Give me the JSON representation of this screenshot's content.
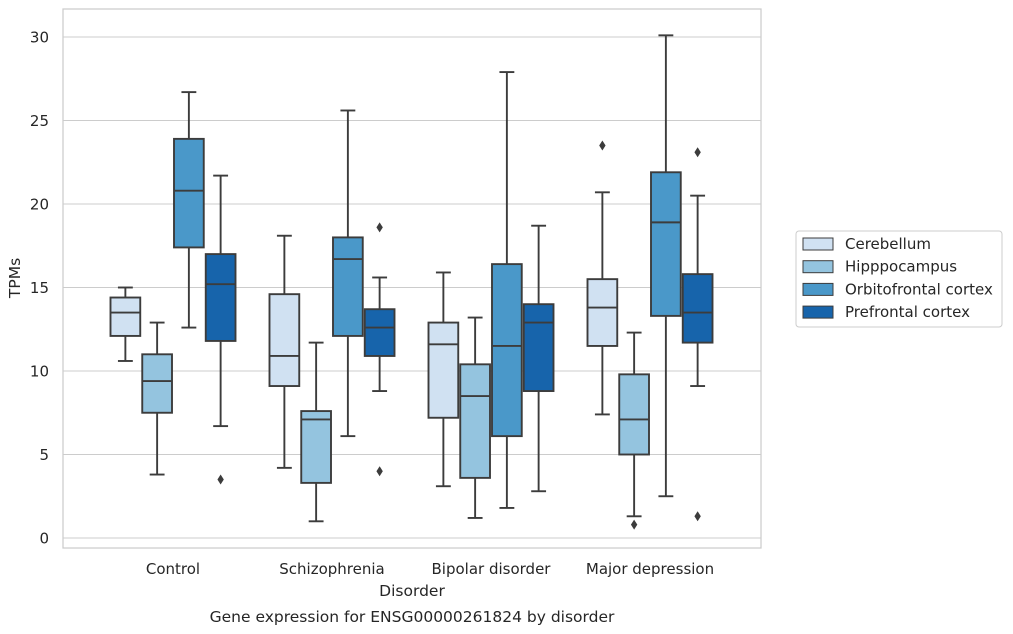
{
  "chart_data": {
    "type": "box",
    "title": "Gene expression for ENSG00000261824 by disorder",
    "xlabel": "Disorder",
    "ylabel": "TPMs",
    "ylim": [
      -0.5,
      31.6
    ],
    "yticks": [
      0,
      5,
      10,
      15,
      20,
      25,
      30
    ],
    "grid": "horizontal",
    "legend_position": "right",
    "categories": [
      "Control",
      "Schizophrenia",
      "Bipolar disorder",
      "Major depression"
    ],
    "series": [
      {
        "name": "Cerebellum",
        "color": "#d0e1f2",
        "boxes": [
          {
            "whislo": 10.6,
            "q1": 12.1,
            "med": 13.5,
            "q3": 14.4,
            "whishi": 15.0,
            "fliers": []
          },
          {
            "whislo": 4.2,
            "q1": 9.1,
            "med": 10.9,
            "q3": 14.6,
            "whishi": 18.1,
            "fliers": []
          },
          {
            "whislo": 3.1,
            "q1": 7.2,
            "med": 11.6,
            "q3": 12.9,
            "whishi": 15.9,
            "fliers": []
          },
          {
            "whislo": 7.4,
            "q1": 11.5,
            "med": 13.8,
            "q3": 15.5,
            "whishi": 20.7,
            "fliers": [
              23.5
            ]
          }
        ]
      },
      {
        "name": "Hipppocampus",
        "color": "#94c4df",
        "boxes": [
          {
            "whislo": 3.8,
            "q1": 7.5,
            "med": 9.4,
            "q3": 11.0,
            "whishi": 12.9,
            "fliers": []
          },
          {
            "whislo": 1.0,
            "q1": 3.3,
            "med": 7.1,
            "q3": 7.6,
            "whishi": 11.7,
            "fliers": []
          },
          {
            "whislo": 1.2,
            "q1": 3.6,
            "med": 8.5,
            "q3": 10.4,
            "whishi": 13.2,
            "fliers": []
          },
          {
            "whislo": 1.3,
            "q1": 5.0,
            "med": 7.1,
            "q3": 9.8,
            "whishi": 12.3,
            "fliers": [
              0.8
            ]
          }
        ]
      },
      {
        "name": "Orbitofrontal cortex",
        "color": "#4a98c9",
        "boxes": [
          {
            "whislo": 12.6,
            "q1": 17.4,
            "med": 20.8,
            "q3": 23.9,
            "whishi": 26.7,
            "fliers": []
          },
          {
            "whislo": 6.1,
            "q1": 12.1,
            "med": 16.7,
            "q3": 18.0,
            "whishi": 25.6,
            "fliers": []
          },
          {
            "whislo": 1.8,
            "q1": 6.1,
            "med": 11.5,
            "q3": 16.4,
            "whishi": 27.9,
            "fliers": []
          },
          {
            "whislo": 2.5,
            "q1": 13.3,
            "med": 18.9,
            "q3": 21.9,
            "whishi": 30.1,
            "fliers": []
          }
        ]
      },
      {
        "name": "Prefrontal cortex",
        "color": "#1764ab",
        "boxes": [
          {
            "whislo": 6.7,
            "q1": 11.8,
            "med": 15.2,
            "q3": 17.0,
            "whishi": 21.7,
            "fliers": [
              3.5
            ]
          },
          {
            "whislo": 8.8,
            "q1": 10.9,
            "med": 12.6,
            "q3": 13.7,
            "whishi": 15.6,
            "fliers": [
              18.6,
              4.0
            ]
          },
          {
            "whislo": 2.8,
            "q1": 8.8,
            "med": 12.9,
            "q3": 14.0,
            "whishi": 18.7,
            "fliers": []
          },
          {
            "whislo": 9.1,
            "q1": 11.7,
            "med": 13.5,
            "q3": 15.8,
            "whishi": 20.5,
            "fliers": [
              23.1,
              1.3
            ]
          }
        ]
      }
    ]
  }
}
